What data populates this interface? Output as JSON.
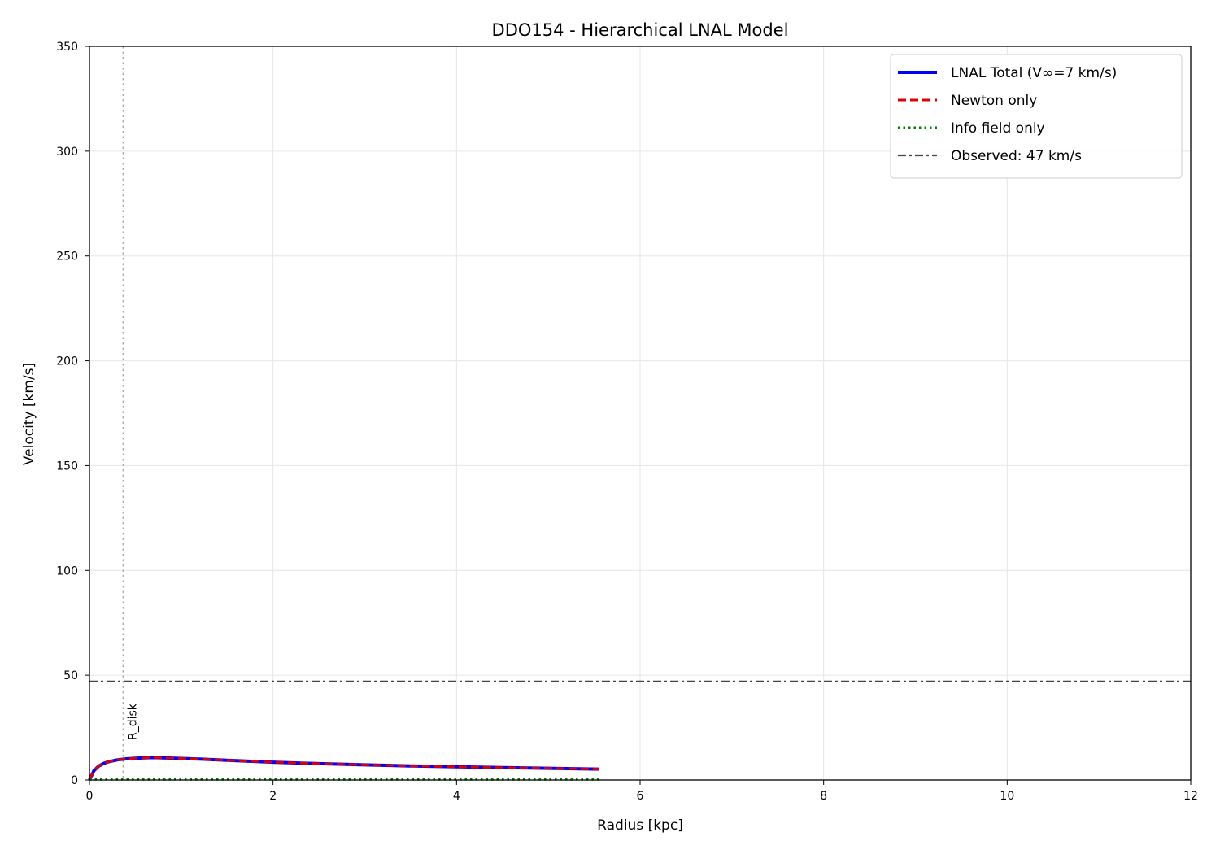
{
  "chart_data": {
    "type": "line",
    "title": "DDO154 - Hierarchical LNAL Model",
    "xlabel": "Radius [kpc]",
    "ylabel": "Velocity [km/s]",
    "xlim": [
      0,
      12
    ],
    "ylim": [
      0,
      350
    ],
    "xticks": [
      0,
      2,
      4,
      6,
      8,
      10,
      12
    ],
    "yticks": [
      0,
      50,
      100,
      150,
      200,
      250,
      300,
      350
    ],
    "grid": true,
    "legend_position": "top-right",
    "series": [
      {
        "name": "LNAL Total (V∞=7 km/s)",
        "color": "#0000ff",
        "style": "solid",
        "x": [
          0.0,
          0.05,
          0.1,
          0.15,
          0.2,
          0.3,
          0.4,
          0.5,
          0.6,
          0.7,
          0.8,
          1.0,
          1.2,
          1.5,
          2.0,
          2.5,
          3.0,
          3.5,
          4.0,
          4.5,
          5.0,
          5.55
        ],
        "y": [
          0.0,
          4.5,
          6.6,
          7.8,
          8.6,
          9.6,
          10.1,
          10.4,
          10.6,
          10.7,
          10.6,
          10.3,
          10.0,
          9.4,
          8.5,
          7.8,
          7.2,
          6.7,
          6.3,
          5.9,
          5.6,
          5.2
        ]
      },
      {
        "name": "Newton only",
        "color": "#e00000",
        "style": "dashed",
        "x": [
          0.0,
          0.05,
          0.1,
          0.15,
          0.2,
          0.3,
          0.4,
          0.5,
          0.6,
          0.7,
          0.8,
          1.0,
          1.2,
          1.5,
          2.0,
          2.5,
          3.0,
          3.5,
          4.0,
          4.5,
          5.0,
          5.55
        ],
        "y": [
          0.0,
          4.5,
          6.6,
          7.8,
          8.6,
          9.6,
          10.1,
          10.4,
          10.6,
          10.7,
          10.6,
          10.3,
          10.0,
          9.4,
          8.5,
          7.8,
          7.2,
          6.7,
          6.3,
          5.9,
          5.6,
          5.2
        ]
      },
      {
        "name": "Info field only",
        "color": "#008000",
        "style": "dotted",
        "x": [
          0.0,
          1.0,
          2.0,
          3.0,
          4.0,
          5.0,
          5.55
        ],
        "y": [
          0.3,
          0.3,
          0.3,
          0.3,
          0.3,
          0.3,
          0.3
        ]
      }
    ],
    "hlines": [
      {
        "name": "Observed: 47 km/s",
        "y": 47,
        "color": "#444444",
        "style": "dashdot"
      }
    ],
    "vlines": [
      {
        "label": "R_disk",
        "x": 0.37,
        "color": "#aaaaaa",
        "style": "dotted"
      }
    ]
  }
}
